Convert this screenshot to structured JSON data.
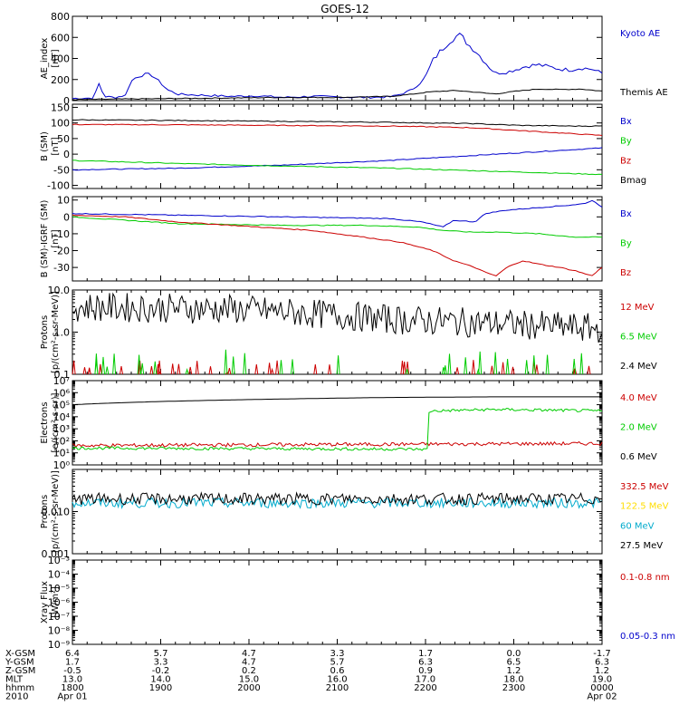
{
  "title": "GOES-12",
  "colors": {
    "black": "#000000",
    "red": "#cc0000",
    "green": "#00cc00",
    "blue": "#0000cc",
    "yellow": "#ffdd00",
    "cyan": "#00aacc",
    "axis": "#000000"
  },
  "chart_data": [
    {
      "type": "line",
      "ylabel": [
        "AE_index",
        "[nT]"
      ],
      "yrange": [
        0,
        800
      ],
      "yticks": [
        {
          "v": 0,
          "label": "0"
        },
        {
          "v": 200,
          "label": "200"
        },
        {
          "v": 400,
          "label": "400"
        },
        {
          "v": 600,
          "label": "600"
        },
        {
          "v": 800,
          "label": "800"
        }
      ],
      "series": [
        {
          "name": "Kyoto AE",
          "color": "blue",
          "style": "spiky",
          "points": [
            [
              0,
              20
            ],
            [
              4,
              25
            ],
            [
              5,
              160
            ],
            [
              6,
              40
            ],
            [
              8,
              30
            ],
            [
              10,
              50
            ],
            [
              11,
              180
            ],
            [
              12,
              220
            ],
            [
              13,
              240
            ],
            [
              14,
              250
            ],
            [
              15,
              240
            ],
            [
              16,
              200
            ],
            [
              17,
              150
            ],
            [
              18,
              100
            ],
            [
              20,
              60
            ],
            [
              25,
              50
            ],
            [
              30,
              40
            ],
            [
              35,
              45
            ],
            [
              40,
              30
            ],
            [
              45,
              40
            ],
            [
              50,
              35
            ],
            [
              55,
              30
            ],
            [
              60,
              35
            ],
            [
              62,
              60
            ],
            [
              64,
              100
            ],
            [
              66,
              180
            ],
            [
              67,
              260
            ],
            [
              68,
              380
            ],
            [
              69,
              440
            ],
            [
              70,
              500
            ],
            [
              71,
              560
            ],
            [
              72,
              600
            ],
            [
              73,
              620
            ],
            [
              74,
              580
            ],
            [
              75,
              520
            ],
            [
              76,
              480
            ],
            [
              77,
              420
            ],
            [
              78,
              360
            ],
            [
              79,
              300
            ],
            [
              80,
              260
            ],
            [
              82,
              270
            ],
            [
              84,
              300
            ],
            [
              86,
              330
            ],
            [
              88,
              340
            ],
            [
              90,
              320
            ],
            [
              92,
              300
            ],
            [
              94,
              290
            ],
            [
              96,
              310
            ],
            [
              98,
              300
            ],
            [
              100,
              260
            ]
          ]
        },
        {
          "name": "Themis AE",
          "color": "black",
          "style": "smooth",
          "points": [
            [
              0,
              10
            ],
            [
              10,
              15
            ],
            [
              20,
              20
            ],
            [
              30,
              25
            ],
            [
              40,
              30
            ],
            [
              50,
              30
            ],
            [
              55,
              35
            ],
            [
              60,
              40
            ],
            [
              64,
              60
            ],
            [
              67,
              80
            ],
            [
              70,
              90
            ],
            [
              72,
              95
            ],
            [
              74,
              90
            ],
            [
              76,
              80
            ],
            [
              78,
              70
            ],
            [
              80,
              65
            ],
            [
              84,
              90
            ],
            [
              88,
              110
            ],
            [
              92,
              105
            ],
            [
              96,
              110
            ],
            [
              100,
              90
            ]
          ]
        }
      ]
    },
    {
      "type": "line",
      "ylabel": [
        "B (SM)",
        "[nT]"
      ],
      "yrange": [
        -110,
        160
      ],
      "yticks": [
        {
          "v": -100,
          "label": "-100"
        },
        {
          "v": -50,
          "label": "-50"
        },
        {
          "v": 0,
          "label": "0"
        },
        {
          "v": 50,
          "label": "50"
        },
        {
          "v": 100,
          "label": "100"
        },
        {
          "v": 150,
          "label": "150"
        }
      ],
      "series": [
        {
          "name": "Bx",
          "color": "blue",
          "style": "smooth",
          "points": [
            [
              0,
              -50
            ],
            [
              20,
              -45
            ],
            [
              40,
              -35
            ],
            [
              60,
              -20
            ],
            [
              75,
              -5
            ],
            [
              90,
              10
            ],
            [
              100,
              20
            ]
          ]
        },
        {
          "name": "By",
          "color": "green",
          "style": "smooth",
          "points": [
            [
              0,
              -20
            ],
            [
              20,
              -30
            ],
            [
              40,
              -38
            ],
            [
              60,
              -45
            ],
            [
              80,
              -55
            ],
            [
              90,
              -60
            ],
            [
              100,
              -65
            ]
          ]
        },
        {
          "name": "Bz",
          "color": "red",
          "style": "smooth",
          "points": [
            [
              0,
              95
            ],
            [
              20,
              94
            ],
            [
              40,
              92
            ],
            [
              60,
              90
            ],
            [
              75,
              85
            ],
            [
              85,
              75
            ],
            [
              95,
              65
            ],
            [
              100,
              60
            ]
          ]
        },
        {
          "name": "Bmag",
          "color": "black",
          "style": "smooth",
          "points": [
            [
              0,
              110
            ],
            [
              20,
              108
            ],
            [
              40,
              105
            ],
            [
              60,
              102
            ],
            [
              75,
              98
            ],
            [
              85,
              92
            ],
            [
              95,
              90
            ],
            [
              100,
              90
            ]
          ]
        }
      ]
    },
    {
      "type": "line",
      "ylabel": [
        "B (SM)-IGRF (SM)",
        "[nT]"
      ],
      "yrange": [
        -38,
        12
      ],
      "yticks": [
        {
          "v": -30,
          "label": "-30"
        },
        {
          "v": -20,
          "label": "-20"
        },
        {
          "v": -10,
          "label": "-10"
        },
        {
          "v": 0,
          "label": "0"
        },
        {
          "v": 10,
          "label": "10"
        }
      ],
      "series": [
        {
          "name": "Bx",
          "color": "blue",
          "style": "smooth",
          "points": [
            [
              0,
              2
            ],
            [
              20,
              1
            ],
            [
              40,
              0
            ],
            [
              60,
              -1
            ],
            [
              66,
              -3
            ],
            [
              70,
              -6
            ],
            [
              72,
              -2
            ],
            [
              76,
              -3
            ],
            [
              78,
              2
            ],
            [
              82,
              4
            ],
            [
              86,
              5
            ],
            [
              90,
              6
            ],
            [
              94,
              7
            ],
            [
              97,
              8
            ],
            [
              98,
              10
            ],
            [
              100,
              6
            ]
          ]
        },
        {
          "name": "By",
          "color": "green",
          "style": "smooth",
          "points": [
            [
              0,
              0
            ],
            [
              10,
              -2
            ],
            [
              20,
              -4
            ],
            [
              40,
              -5
            ],
            [
              55,
              -5
            ],
            [
              65,
              -6
            ],
            [
              70,
              -8
            ],
            [
              75,
              -9
            ],
            [
              80,
              -9
            ],
            [
              88,
              -10
            ],
            [
              95,
              -12
            ],
            [
              100,
              -12
            ]
          ]
        },
        {
          "name": "Bz",
          "color": "red",
          "style": "smooth",
          "points": [
            [
              0,
              1
            ],
            [
              10,
              0
            ],
            [
              20,
              -3
            ],
            [
              35,
              -6
            ],
            [
              45,
              -8
            ],
            [
              55,
              -12
            ],
            [
              62,
              -15
            ],
            [
              68,
              -20
            ],
            [
              72,
              -26
            ],
            [
              76,
              -30
            ],
            [
              78,
              -33
            ],
            [
              80,
              -35
            ],
            [
              82,
              -30
            ],
            [
              85,
              -26
            ],
            [
              88,
              -28
            ],
            [
              92,
              -30
            ],
            [
              95,
              -32
            ],
            [
              98,
              -35
            ],
            [
              100,
              -30
            ]
          ]
        }
      ]
    },
    {
      "type": "line",
      "ylabel": [
        "Protons",
        "[p/(cm²-s-sr-MeV)]"
      ],
      "log": true,
      "yrange": [
        0.1,
        10
      ],
      "yticks": [
        {
          "v": 0.1,
          "label": "0.1"
        },
        {
          "v": 1,
          "label": "1.0"
        },
        {
          "v": 10,
          "label": "10.0"
        }
      ],
      "series": [
        {
          "name": "12 MeV",
          "color": "red",
          "style": "sparse",
          "base": 0.1,
          "peak": 0.22
        },
        {
          "name": "6.5 MeV",
          "color": "green",
          "style": "sparse",
          "base": 0.12,
          "peak": 0.4
        },
        {
          "name": "2.4 MeV",
          "color": "black",
          "style": "noisy",
          "points": [
            [
              0,
              4
            ],
            [
              30,
              3.5
            ],
            [
              60,
              2
            ],
            [
              100,
              1.2
            ]
          ],
          "noise": 0.35
        }
      ]
    },
    {
      "type": "line",
      "ylabel": [
        "Electrons",
        "[e/(cm²-s-sr)]"
      ],
      "log": true,
      "yrange": [
        1,
        10000000
      ],
      "yticks": [
        {
          "v": 1,
          "label": "10⁰"
        },
        {
          "v": 10,
          "label": "10¹"
        },
        {
          "v": 100,
          "label": "10²"
        },
        {
          "v": 1000,
          "label": "10³"
        },
        {
          "v": 10000,
          "label": "10⁴"
        },
        {
          "v": 100000,
          "label": "10⁵"
        },
        {
          "v": 1000000,
          "label": "10⁶"
        },
        {
          "v": 10000000,
          "label": "10⁷"
        }
      ],
      "series": [
        {
          "name": "4.0 MeV",
          "color": "red",
          "style": "noisy",
          "points": [
            [
              0,
              40
            ],
            [
              50,
              50
            ],
            [
              100,
              60
            ]
          ],
          "noise": 0.15
        },
        {
          "name": "2.0 MeV",
          "color": "green",
          "style": "noisy",
          "points": [
            [
              0,
              25
            ],
            [
              67,
              20
            ],
            [
              67.5,
              30000
            ],
            [
              80,
              40000
            ],
            [
              100,
              30000
            ]
          ],
          "noise": 0.12
        },
        {
          "name": "0.6 MeV",
          "color": "black",
          "style": "smooth",
          "points": [
            [
              0,
              100000
            ],
            [
              20,
              200000
            ],
            [
              40,
              300000
            ],
            [
              60,
              400000
            ],
            [
              80,
              450000
            ],
            [
              100,
              450000
            ]
          ]
        }
      ]
    },
    {
      "type": "line",
      "ylabel": [
        "Protons",
        "[p/(cm²-s-sr-MeV)]"
      ],
      "log": true,
      "yrange": [
        0.001,
        0.1
      ],
      "yticks": [
        {
          "v": 0.001,
          "label": "0.001"
        },
        {
          "v": 0.01,
          "label": "0.010"
        }
      ],
      "series": [
        {
          "name": "332.5 MeV",
          "color": "red",
          "style": "none"
        },
        {
          "name": "122.5 MeV",
          "color": "yellow",
          "style": "none"
        },
        {
          "name": "60 MeV",
          "color": "cyan",
          "style": "noisy",
          "points": [
            [
              0,
              0.016
            ],
            [
              100,
              0.016
            ]
          ],
          "noise": 0.12
        },
        {
          "name": "27.5 MeV",
          "color": "black",
          "style": "noisy",
          "points": [
            [
              0,
              0.02
            ],
            [
              100,
              0.02
            ]
          ],
          "noise": 0.14
        }
      ]
    },
    {
      "type": "line",
      "ylabel": [
        "Xray Flux",
        "[W/m²]"
      ],
      "log": true,
      "yrange": [
        1e-09,
        0.001
      ],
      "yticks": [
        {
          "v": 1e-09,
          "label": "10⁻⁹"
        },
        {
          "v": 1e-08,
          "label": "10⁻⁸"
        },
        {
          "v": 1e-07,
          "label": "10⁻⁷"
        },
        {
          "v": 1e-06,
          "label": "10⁻⁶"
        },
        {
          "v": 1e-05,
          "label": "10⁻⁵"
        },
        {
          "v": 0.0001,
          "label": "10⁻⁴"
        },
        {
          "v": 0.001,
          "label": "10⁻³"
        }
      ],
      "series": [
        {
          "name": "0.1-0.8 nm",
          "color": "red",
          "style": "none"
        },
        {
          "name": "0.05-0.3 nm",
          "color": "blue",
          "style": "none"
        }
      ]
    }
  ],
  "xaxis": {
    "row_labels": [
      "X-GSM",
      "Y-GSM",
      "Z-GSM",
      "MLT",
      "hhmm",
      "2010"
    ],
    "columns": [
      {
        "x": 0,
        "vals": [
          "6.4",
          "1.7",
          "-0.5",
          "13.0",
          "1800",
          "Apr 01"
        ]
      },
      {
        "x": 16.67,
        "vals": [
          "5.7",
          "3.3",
          "-0.2",
          "14.0",
          "1900",
          ""
        ]
      },
      {
        "x": 33.33,
        "vals": [
          "4.7",
          "4.7",
          "0.2",
          "15.0",
          "2000",
          ""
        ]
      },
      {
        "x": 50,
        "vals": [
          "3.3",
          "5.7",
          "0.6",
          "16.0",
          "2100",
          ""
        ]
      },
      {
        "x": 66.67,
        "vals": [
          "1.7",
          "6.3",
          "0.9",
          "17.0",
          "2200",
          ""
        ]
      },
      {
        "x": 83.33,
        "vals": [
          "0.0",
          "6.5",
          "1.2",
          "18.0",
          "2300",
          ""
        ]
      },
      {
        "x": 100,
        "vals": [
          "-1.7",
          "6.3",
          "1.2",
          "19.0",
          "0000",
          "Apr 02"
        ]
      }
    ]
  }
}
